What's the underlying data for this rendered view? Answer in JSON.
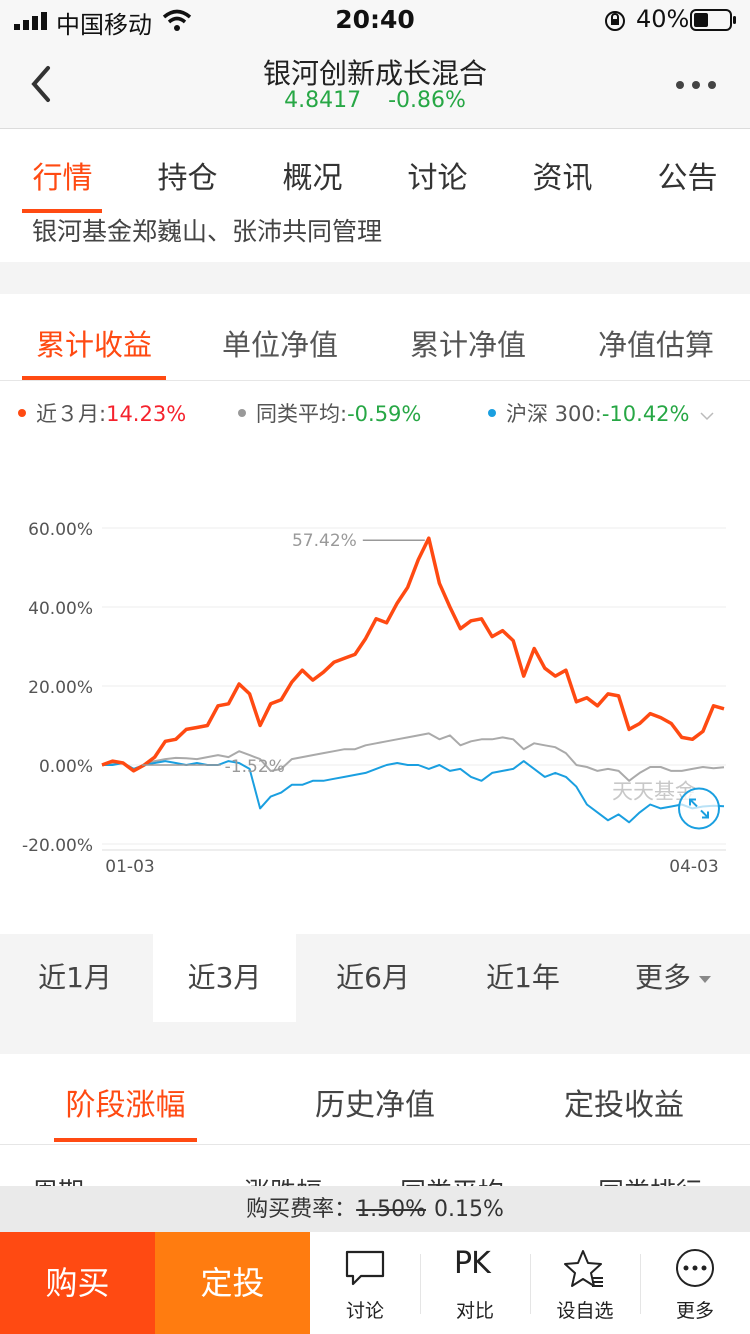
{
  "status": {
    "carrier": "中国移动",
    "time": "20:40",
    "battery": "40%"
  },
  "nav": {
    "title": "银河创新成长混合",
    "nav_value": "4.8417",
    "change": "-0.86%"
  },
  "top_tabs": [
    "行情",
    "持仓",
    "概况",
    "讨论",
    "资讯",
    "公告"
  ],
  "manager_text": "银河基金郑巍山、张沛共同管理",
  "chart_tabs": [
    "累计收益",
    "单位净值",
    "累计净值",
    "净值估算"
  ],
  "legend": [
    {
      "label": "近３月:",
      "value": "14.23%",
      "color": "#ff4a12",
      "value_color": "#f5222d"
    },
    {
      "label": "同类平均:",
      "value": "-0.59%",
      "color": "#999999",
      "value_color": "#27a745"
    },
    {
      "label": "沪深 300:",
      "value": "-10.42%",
      "color": "#1a9fe0",
      "value_color": "#27a745"
    }
  ],
  "chart_data": {
    "type": "line",
    "yticks": [
      "60.00%",
      "40.00%",
      "20.00%",
      "0.00%",
      "-20.00%"
    ],
    "ylim": [
      -20,
      60
    ],
    "x_labels": [
      "01-03",
      "04-03"
    ],
    "annotations": {
      "max": "57.42%",
      "min": "-1.52%",
      "watermark": "天天基金"
    },
    "series": [
      {
        "name": "近３月",
        "color": "#ff4a12",
        "values": [
          0,
          1,
          0.5,
          -1.5,
          0,
          2,
          6,
          6.5,
          9,
          9.5,
          10,
          15,
          15.5,
          20.5,
          18,
          10,
          15.5,
          16.5,
          21,
          24,
          21.5,
          23.5,
          26,
          27,
          28,
          32,
          37,
          36,
          41,
          45,
          52,
          57.42,
          46,
          40,
          34.5,
          36.5,
          37,
          32.5,
          34,
          31.5,
          22.5,
          29.5,
          24.5,
          22.5,
          24,
          16,
          17,
          15,
          18,
          17.5,
          9,
          10.5,
          13,
          12,
          10.5,
          7,
          6.5,
          8.5,
          15,
          14.23
        ]
      },
      {
        "name": "同类平均",
        "color": "#aaaaaa",
        "values": [
          0,
          0.5,
          0.5,
          -1,
          0,
          1,
          1.5,
          1.8,
          1.7,
          1.5,
          2,
          2.5,
          2,
          3.5,
          2.5,
          1.5,
          -1.52,
          -1,
          1.5,
          2,
          2.5,
          3,
          3.5,
          4,
          4,
          5,
          5.5,
          6,
          6.5,
          7,
          7.5,
          8,
          6.5,
          7.5,
          5,
          6,
          6.5,
          6.5,
          7,
          6.5,
          4,
          5.5,
          5,
          4.5,
          3,
          0,
          -0.5,
          -1.5,
          -1,
          -1.5,
          -4,
          -2,
          -0.5,
          -0.5,
          -1.5,
          -1.5,
          -1,
          -0.5,
          -0.8,
          -0.59
        ]
      },
      {
        "name": "沪深 300",
        "color": "#1a9fe0",
        "values": [
          0,
          0,
          0.5,
          -1,
          0,
          0.5,
          1,
          0.5,
          0,
          0.5,
          0,
          0,
          1,
          0.5,
          -1,
          -11,
          -8,
          -7,
          -5,
          -5,
          -4,
          -4,
          -3.5,
          -3,
          -2.5,
          -2,
          -1,
          0,
          0.5,
          0,
          0,
          -1,
          0,
          -1.5,
          -1,
          -3,
          -4,
          -2,
          -1.5,
          -1,
          1,
          -1,
          -3,
          -2,
          -3,
          -5.5,
          -10,
          -12,
          -14,
          -12.5,
          -14.5,
          -12,
          -10,
          -11,
          -10.5,
          -10,
          -11,
          -10.5,
          -10.3,
          -10.42
        ]
      }
    ]
  },
  "periods": [
    "近1月",
    "近3月",
    "近6月",
    "近1年",
    "更多"
  ],
  "section_tabs": [
    "阶段涨幅",
    "历史净值",
    "定投收益"
  ],
  "table_headers": [
    "周期",
    "涨跌幅",
    "同类平均",
    "同类排行"
  ],
  "fee": {
    "label": "购买费率：",
    "old": "1.50%",
    "new": "0.15%"
  },
  "buttons": {
    "buy": "购买",
    "dingtou": "定投"
  },
  "actions": [
    "讨论",
    "对比",
    "设自选",
    "更多"
  ],
  "pk_text": "PK"
}
